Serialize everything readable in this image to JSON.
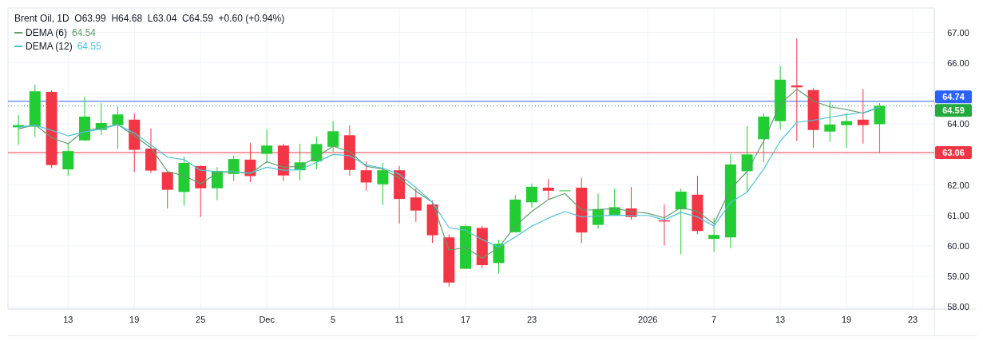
{
  "chart_data": {
    "type": "candlestick",
    "title": "Brent Oil, 1D  O63.99  H64.68  L63.04  C64.59  +0.60 (+0.94%)",
    "categories": [
      null,
      null,
      null,
      "13",
      null,
      null,
      null,
      "19",
      null,
      null,
      null,
      "25",
      null,
      null,
      null,
      "Dec",
      null,
      null,
      null,
      "5",
      null,
      null,
      null,
      "11",
      null,
      null,
      null,
      "17",
      null,
      null,
      null,
      "23",
      null,
      null,
      null,
      null,
      null,
      null,
      "2026",
      null,
      null,
      null,
      "7",
      null,
      null,
      null,
      "13",
      null,
      null,
      null,
      "19",
      null,
      null,
      null,
      "23",
      null
    ],
    "ohlc": [
      [
        63.89,
        64.29,
        63.31,
        63.96
      ],
      [
        63.91,
        65.29,
        63.57,
        65.07
      ],
      [
        65.05,
        65.1,
        62.55,
        62.65
      ],
      [
        62.51,
        63.35,
        62.3,
        63.11
      ],
      [
        63.46,
        64.88,
        63.44,
        64.24
      ],
      [
        63.8,
        64.69,
        63.64,
        64.03
      ],
      [
        63.96,
        64.57,
        63.18,
        64.31
      ],
      [
        64.14,
        64.34,
        62.42,
        63.15
      ],
      [
        63.19,
        63.85,
        62.39,
        62.47
      ],
      [
        62.42,
        62.45,
        61.23,
        61.84
      ],
      [
        61.77,
        62.93,
        61.32,
        62.72
      ],
      [
        62.62,
        62.64,
        60.95,
        61.89
      ],
      [
        61.89,
        62.58,
        61.5,
        62.46
      ],
      [
        62.36,
        62.96,
        62.13,
        62.85
      ],
      [
        62.83,
        63.38,
        62.09,
        62.29
      ],
      [
        63.02,
        63.82,
        62.72,
        63.29
      ],
      [
        63.29,
        63.35,
        62.13,
        62.31
      ],
      [
        62.48,
        63.35,
        62.15,
        62.74
      ],
      [
        62.77,
        63.59,
        62.51,
        63.34
      ],
      [
        63.25,
        64.09,
        63.09,
        63.76
      ],
      [
        63.63,
        63.95,
        62.3,
        62.49
      ],
      [
        62.48,
        62.77,
        61.81,
        62.08
      ],
      [
        62.02,
        62.72,
        61.34,
        62.48
      ],
      [
        62.48,
        62.62,
        60.73,
        61.54
      ],
      [
        61.59,
        61.88,
        60.79,
        61.16
      ],
      [
        61.36,
        61.49,
        60.1,
        60.35
      ],
      [
        60.28,
        60.38,
        58.67,
        58.8
      ],
      [
        59.25,
        60.71,
        59.25,
        60.65
      ],
      [
        60.59,
        60.66,
        59.27,
        59.37
      ],
      [
        59.44,
        60.21,
        59.09,
        60.07
      ],
      [
        60.45,
        61.67,
        60.45,
        61.52
      ],
      [
        61.43,
        62.04,
        61.26,
        61.94
      ],
      [
        61.91,
        62.2,
        61.52,
        61.81
      ],
      [
        61.82,
        61.82,
        61.82,
        61.82
      ],
      [
        61.91,
        62.24,
        60.1,
        60.44
      ],
      [
        60.69,
        61.71,
        60.56,
        61.21
      ],
      [
        60.99,
        61.87,
        60.99,
        61.27
      ],
      [
        61.23,
        61.93,
        60.86,
        60.95
      ],
      null,
      [
        60.84,
        61.36,
        60.01,
        60.8
      ],
      [
        61.2,
        61.88,
        59.73,
        61.78
      ],
      [
        61.68,
        62.3,
        60.38,
        60.49
      ],
      [
        60.23,
        60.92,
        59.8,
        60.36
      ],
      [
        60.28,
        63.0,
        59.93,
        62.67
      ],
      [
        62.45,
        63.94,
        61.76,
        63.0
      ],
      [
        63.5,
        64.33,
        62.74,
        64.24
      ],
      [
        64.09,
        65.9,
        63.82,
        65.45
      ],
      [
        65.26,
        66.8,
        63.44,
        65.2
      ],
      [
        65.11,
        65.17,
        63.22,
        63.8
      ],
      [
        63.75,
        64.75,
        63.41,
        63.98
      ],
      [
        63.96,
        64.35,
        63.22,
        64.09
      ],
      [
        64.14,
        65.14,
        63.35,
        63.96
      ],
      [
        63.99,
        64.68,
        63.04,
        64.59
      ],
      null,
      null,
      null
    ],
    "series": [
      {
        "name": "DEMA (6)",
        "type": "line",
        "color": "#5f9e6e",
        "values": [
          63.83,
          63.98,
          63.55,
          63.35,
          63.79,
          63.86,
          63.98,
          63.61,
          63.22,
          62.44,
          62.3,
          62.04,
          62.39,
          62.44,
          62.37,
          62.76,
          62.58,
          62.61,
          62.91,
          63.27,
          63.09,
          62.61,
          62.52,
          62.22,
          61.8,
          61.43,
          59.86,
          59.95,
          59.6,
          59.95,
          60.65,
          61.13,
          61.52,
          61.72,
          61.17,
          61.19,
          61.23,
          61.13,
          61.07,
          60.92,
          61.26,
          61.13,
          60.73,
          61.87,
          62.44,
          63.44,
          64.66,
          65.14,
          64.75,
          64.56,
          64.47,
          64.35,
          64.54,
          null,
          null,
          null
        ]
      },
      {
        "name": "DEMA (12)",
        "type": "line",
        "color": "#4fc3d9",
        "values": [
          63.89,
          63.96,
          63.79,
          63.61,
          63.74,
          63.83,
          63.98,
          63.7,
          63.31,
          62.91,
          62.83,
          62.48,
          62.44,
          62.44,
          62.39,
          62.58,
          62.48,
          62.5,
          62.74,
          63.0,
          62.96,
          62.65,
          62.55,
          62.35,
          61.91,
          61.43,
          60.6,
          60.51,
          60.21,
          59.96,
          60.29,
          60.65,
          60.91,
          61.13,
          60.95,
          60.98,
          61.01,
          61.0,
          61.0,
          60.86,
          61.1,
          60.95,
          60.65,
          61.43,
          61.76,
          62.52,
          63.44,
          64.05,
          64.12,
          64.22,
          64.31,
          64.37,
          64.55,
          null,
          null,
          null
        ]
      }
    ],
    "annotations": [
      "64.54",
      "64.55"
    ],
    "ylim": [
      57.93,
      67.8
    ],
    "yticks": [
      {
        "value": 58,
        "label": "58.00"
      },
      {
        "value": 59,
        "label": "59.00"
      },
      {
        "value": 60,
        "label": "60.00"
      },
      {
        "value": 61,
        "label": "61.00"
      },
      {
        "value": 62,
        "label": "62.00"
      },
      {
        "value": 63,
        "label": null
      },
      {
        "value": 64,
        "label": "64.00"
      },
      {
        "value": 65,
        "label": null
      },
      {
        "value": 66,
        "label": "66.00"
      },
      {
        "value": 67,
        "label": "67.00"
      }
    ],
    "ref_lines": [
      {
        "axis": "y",
        "value": 64.74,
        "label": "64.74",
        "color": "#2962ff"
      },
      {
        "axis": "y",
        "value": 64.59,
        "label": "64.59",
        "color": "#22ab3c",
        "line_style": "dotted"
      },
      {
        "axis": "y",
        "value": 63.06,
        "label": "63.06",
        "color": "#f23645"
      }
    ],
    "grid": true,
    "legend": "top left"
  }
}
